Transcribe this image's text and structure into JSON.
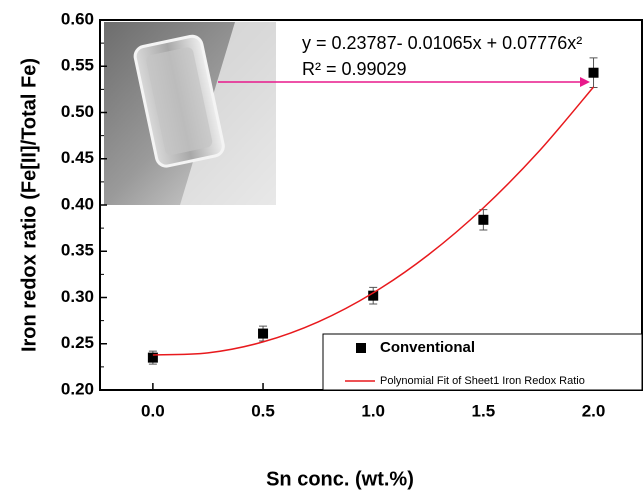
{
  "chart_data": {
    "type": "scatter",
    "x_label": "Sn conc. (wt.%)",
    "y_label": "Iron redox ratio (Fe[II]/Total Fe)",
    "series": [
      {
        "name": "Conventional",
        "color": "#000000",
        "x": [
          0,
          0.5,
          1.0,
          1.5,
          2.0
        ],
        "values": [
          0.235,
          0.261,
          0.302,
          0.384,
          0.543
        ],
        "errors": [
          0.007,
          0.008,
          0.009,
          0.011,
          0.016
        ]
      },
      {
        "name": "Polynomial Fit of Sheet1 Iron Redox Ratio",
        "color": "#e8191d",
        "x": [
          0,
          0.25,
          0.5,
          0.75,
          1,
          1.25,
          1.5,
          1.75,
          2
        ],
        "values": [
          0.2379,
          0.2401,
          0.252,
          0.2736,
          0.305,
          0.3461,
          0.3969,
          0.4574,
          0.5276
        ]
      }
    ],
    "annotations": [
      "y = 0.23787- 0.01065x + 0.07776x²",
      "R² = 0.99029"
    ],
    "xlim": [
      -0.24,
      2.22
    ],
    "xticks": [
      {
        "value": 0,
        "label": "0.0"
      },
      0.5,
      {
        "value": 1,
        "label": "1.0"
      },
      1.5,
      {
        "value": 2,
        "label": "2.0"
      }
    ],
    "ylim": [
      0.2,
      0.6
    ],
    "yticks": [
      {
        "value": 0.2,
        "label": "0.20"
      },
      0.25,
      {
        "value": 0.3,
        "label": "0.30"
      },
      0.35,
      {
        "value": 0.4,
        "label": "0.40"
      },
      0.45,
      {
        "value": 0.5,
        "label": "0.50"
      },
      0.55,
      {
        "value": 0.6,
        "label": "0.60"
      }
    ]
  }
}
